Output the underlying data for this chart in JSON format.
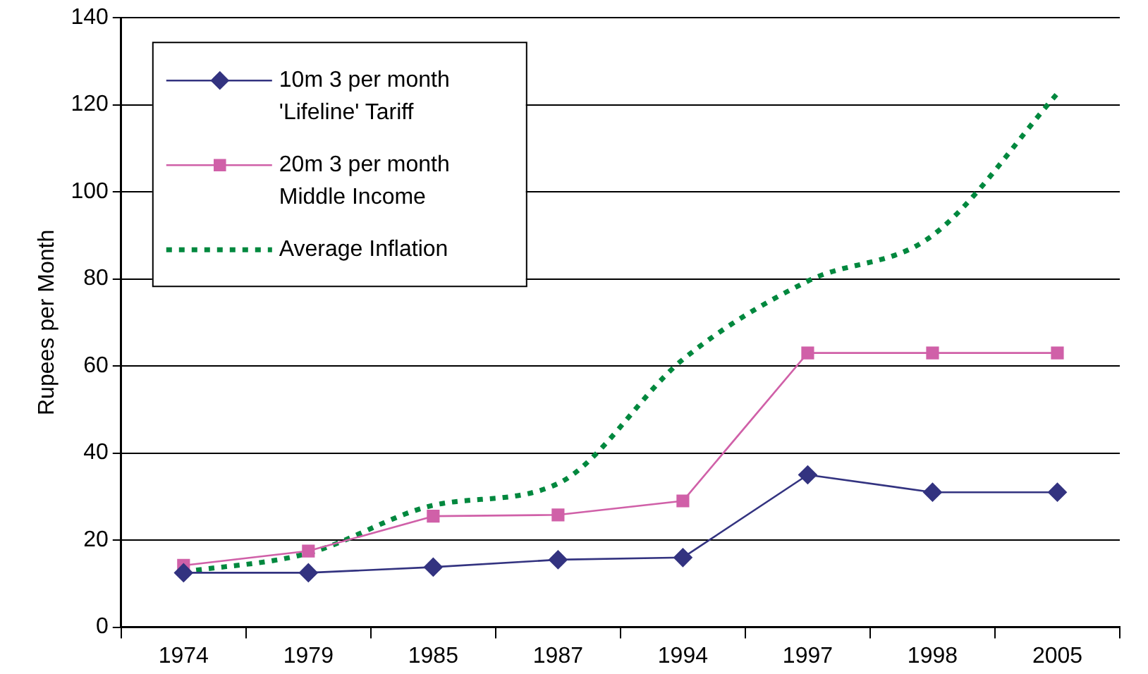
{
  "chart_data": {
    "type": "line",
    "ylabel": "Rupees per Month",
    "categories": [
      "1974",
      "1979",
      "1985",
      "1987",
      "1994",
      "1997",
      "1998",
      "2005"
    ],
    "series": [
      {
        "name": "10m 3 per month 'Lifeline' Tariff",
        "color": "#333380",
        "marker": "diamond",
        "line_style": "solid",
        "values": [
          12.5,
          12.5,
          13.8,
          15.5,
          16,
          35,
          31,
          31
        ]
      },
      {
        "name": "20m 3 per month Middle Income",
        "color": "#d060a8",
        "marker": "square",
        "line_style": "solid",
        "values": [
          14.2,
          17.5,
          25.5,
          25.8,
          29,
          63,
          63,
          63
        ]
      },
      {
        "name": "Average Inflation",
        "color": "#00883e",
        "marker": "none",
        "line_style": "dotted",
        "values": [
          12.7,
          17,
          28,
          33,
          61.5,
          79.5,
          90,
          122.6
        ]
      }
    ],
    "ylim": [
      0,
      140
    ],
    "yticks": [
      0,
      20,
      40,
      60,
      80,
      100,
      120,
      140
    ],
    "grid": "y",
    "legend": "top left"
  }
}
